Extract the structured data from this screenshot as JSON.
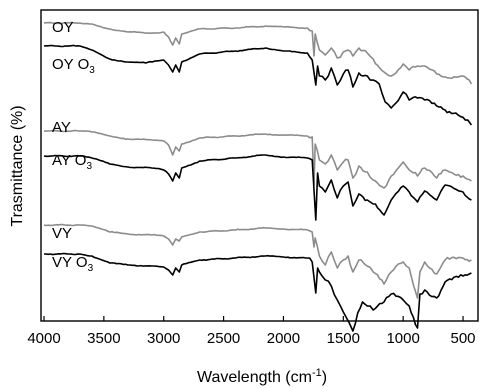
{
  "chart_data": {
    "type": "line",
    "xlabel": "Wavelength (cm",
    "xlabel_sup": "-1",
    "xlabel_close": ")",
    "ylabel": "Trasmittance (%)",
    "xlim": [
      4000,
      400
    ],
    "x_reversed": true,
    "xticks": [
      4000,
      3500,
      3000,
      2500,
      2000,
      1500,
      1000,
      500
    ],
    "grid": false,
    "legend": "none",
    "y_ticks_shown": false,
    "colors": {
      "treated": "#000000",
      "untreated": "#8c8c8c"
    },
    "labels": [
      {
        "text": "OY",
        "sub": ""
      },
      {
        "text": "OY O",
        "sub": "3"
      },
      {
        "text": "AY",
        "sub": ""
      },
      {
        "text": "AY O",
        "sub": "3"
      },
      {
        "text": "VY",
        "sub": ""
      },
      {
        "text": "VY O",
        "sub": "3"
      }
    ],
    "series": [
      {
        "name": "OY",
        "color": "#8c8c8c",
        "points": [
          [
            4000,
            13
          ],
          [
            3700,
            13
          ],
          [
            3600,
            14
          ],
          [
            3450,
            19
          ],
          [
            3300,
            22
          ],
          [
            3100,
            23
          ],
          [
            3000,
            22
          ],
          [
            2960,
            27
          ],
          [
            2925,
            35
          ],
          [
            2900,
            28
          ],
          [
            2870,
            34
          ],
          [
            2850,
            24
          ],
          [
            2700,
            19
          ],
          [
            2400,
            18
          ],
          [
            2150,
            16
          ],
          [
            2000,
            17
          ],
          [
            1800,
            18
          ],
          [
            1760,
            21
          ],
          [
            1745,
            46
          ],
          [
            1735,
            24
          ],
          [
            1700,
            40
          ],
          [
            1650,
            45
          ],
          [
            1600,
            38
          ],
          [
            1550,
            48
          ],
          [
            1500,
            42
          ],
          [
            1460,
            40
          ],
          [
            1420,
            46
          ],
          [
            1370,
            38
          ],
          [
            1300,
            43
          ],
          [
            1250,
            49
          ],
          [
            1160,
            62
          ],
          [
            1100,
            66
          ],
          [
            1000,
            54
          ],
          [
            950,
            60
          ],
          [
            880,
            56
          ],
          [
            820,
            56
          ],
          [
            720,
            64
          ],
          [
            650,
            67
          ],
          [
            500,
            66
          ],
          [
            430,
            74
          ]
        ]
      },
      {
        "name": "OY O3",
        "color": "#000000",
        "points": [
          [
            4000,
            36
          ],
          [
            3700,
            36
          ],
          [
            3600,
            40
          ],
          [
            3450,
            49
          ],
          [
            3300,
            52
          ],
          [
            3150,
            53
          ],
          [
            3000,
            50
          ],
          [
            2960,
            55
          ],
          [
            2925,
            62
          ],
          [
            2900,
            55
          ],
          [
            2870,
            62
          ],
          [
            2850,
            52
          ],
          [
            2700,
            44
          ],
          [
            2400,
            41
          ],
          [
            2150,
            38
          ],
          [
            2000,
            41
          ],
          [
            1800,
            43
          ],
          [
            1760,
            50
          ],
          [
            1730,
            75
          ],
          [
            1715,
            56
          ],
          [
            1700,
            66
          ],
          [
            1650,
            70
          ],
          [
            1600,
            58
          ],
          [
            1550,
            75
          ],
          [
            1500,
            64
          ],
          [
            1460,
            60
          ],
          [
            1420,
            77
          ],
          [
            1370,
            63
          ],
          [
            1300,
            66
          ],
          [
            1250,
            70
          ],
          [
            1200,
            74
          ],
          [
            1150,
            92
          ],
          [
            1100,
            98
          ],
          [
            1000,
            82
          ],
          [
            950,
            90
          ],
          [
            880,
            88
          ],
          [
            820,
            90
          ],
          [
            720,
            96
          ],
          [
            650,
            100
          ],
          [
            560,
            103
          ],
          [
            460,
            110
          ],
          [
            430,
            115
          ]
        ]
      },
      {
        "name": "AY",
        "color": "#8c8c8c",
        "points": [
          [
            4000,
            121
          ],
          [
            3700,
            121
          ],
          [
            3600,
            122
          ],
          [
            3450,
            126
          ],
          [
            3300,
            129
          ],
          [
            3100,
            130
          ],
          [
            3000,
            131
          ],
          [
            2960,
            135
          ],
          [
            2925,
            145
          ],
          [
            2900,
            137
          ],
          [
            2870,
            141
          ],
          [
            2850,
            134
          ],
          [
            2700,
            128
          ],
          [
            2400,
            126
          ],
          [
            2150,
            124
          ],
          [
            2000,
            125
          ],
          [
            1800,
            126
          ],
          [
            1760,
            127
          ],
          [
            1745,
            175
          ],
          [
            1735,
            134
          ],
          [
            1700,
            150
          ],
          [
            1650,
            154
          ],
          [
            1600,
            145
          ],
          [
            1550,
            160
          ],
          [
            1500,
            152
          ],
          [
            1460,
            150
          ],
          [
            1420,
            168
          ],
          [
            1370,
            156
          ],
          [
            1300,
            162
          ],
          [
            1250,
            170
          ],
          [
            1160,
            178
          ],
          [
            1100,
            166
          ],
          [
            1000,
            152
          ],
          [
            950,
            160
          ],
          [
            880,
            166
          ],
          [
            820,
            158
          ],
          [
            720,
            168
          ],
          [
            650,
            160
          ],
          [
            500,
            166
          ],
          [
            430,
            171
          ]
        ]
      },
      {
        "name": "AY O3",
        "color": "#000000",
        "points": [
          [
            4000,
            146
          ],
          [
            3700,
            146
          ],
          [
            3600,
            148
          ],
          [
            3450,
            154
          ],
          [
            3300,
            157
          ],
          [
            3100,
            158
          ],
          [
            3000,
            160
          ],
          [
            2960,
            164
          ],
          [
            2925,
            171
          ],
          [
            2900,
            163
          ],
          [
            2870,
            168
          ],
          [
            2850,
            158
          ],
          [
            2700,
            151
          ],
          [
            2400,
            148
          ],
          [
            2150,
            145
          ],
          [
            2000,
            147
          ],
          [
            1800,
            148
          ],
          [
            1760,
            150
          ],
          [
            1730,
            210
          ],
          [
            1715,
            163
          ],
          [
            1700,
            176
          ],
          [
            1650,
            182
          ],
          [
            1600,
            170
          ],
          [
            1550,
            188
          ],
          [
            1500,
            176
          ],
          [
            1460,
            172
          ],
          [
            1420,
            196
          ],
          [
            1370,
            184
          ],
          [
            1300,
            190
          ],
          [
            1250,
            194
          ],
          [
            1160,
            205
          ],
          [
            1100,
            190
          ],
          [
            1000,
            176
          ],
          [
            950,
            182
          ],
          [
            880,
            192
          ],
          [
            820,
            181
          ],
          [
            720,
            190
          ],
          [
            650,
            175
          ],
          [
            500,
            182
          ],
          [
            430,
            190
          ]
        ]
      },
      {
        "name": "VY",
        "color": "#8c8c8c",
        "points": [
          [
            4000,
            215
          ],
          [
            3700,
            215
          ],
          [
            3600,
            216
          ],
          [
            3450,
            222
          ],
          [
            3300,
            224
          ],
          [
            3100,
            225
          ],
          [
            3000,
            226
          ],
          [
            2960,
            229
          ],
          [
            2925,
            235
          ],
          [
            2900,
            229
          ],
          [
            2870,
            231
          ],
          [
            2850,
            227
          ],
          [
            2700,
            222
          ],
          [
            2400,
            220
          ],
          [
            2150,
            218
          ],
          [
            2000,
            219
          ],
          [
            1800,
            220
          ],
          [
            1760,
            222
          ],
          [
            1745,
            237
          ],
          [
            1735,
            228
          ],
          [
            1700,
            246
          ],
          [
            1650,
            255
          ],
          [
            1600,
            242
          ],
          [
            1550,
            258
          ],
          [
            1500,
            250
          ],
          [
            1460,
            246
          ],
          [
            1420,
            262
          ],
          [
            1370,
            250
          ],
          [
            1300,
            256
          ],
          [
            1250,
            262
          ],
          [
            1160,
            274
          ],
          [
            1100,
            262
          ],
          [
            1000,
            252
          ],
          [
            950,
            258
          ],
          [
            880,
            288
          ],
          [
            860,
            262
          ],
          [
            820,
            252
          ],
          [
            720,
            264
          ],
          [
            650,
            250
          ],
          [
            500,
            248
          ],
          [
            430,
            250
          ]
        ]
      },
      {
        "name": "VY O3",
        "color": "#000000",
        "points": [
          [
            4000,
            244
          ],
          [
            3700,
            244
          ],
          [
            3600,
            246
          ],
          [
            3450,
            253
          ],
          [
            3300,
            255
          ],
          [
            3100,
            256
          ],
          [
            3000,
            257
          ],
          [
            2960,
            260
          ],
          [
            2925,
            265
          ],
          [
            2900,
            258
          ],
          [
            2870,
            262
          ],
          [
            2850,
            255
          ],
          [
            2700,
            250
          ],
          [
            2400,
            248
          ],
          [
            2150,
            246
          ],
          [
            2000,
            247
          ],
          [
            1800,
            248
          ],
          [
            1760,
            252
          ],
          [
            1730,
            283
          ],
          [
            1715,
            258
          ],
          [
            1700,
            262
          ],
          [
            1650,
            270
          ],
          [
            1600,
            276
          ],
          [
            1550,
            290
          ],
          [
            1500,
            302
          ],
          [
            1450,
            313
          ],
          [
            1420,
            321
          ],
          [
            1380,
            303
          ],
          [
            1340,
            292
          ],
          [
            1300,
            296
          ],
          [
            1250,
            300
          ],
          [
            1160,
            292
          ],
          [
            1100,
            284
          ],
          [
            1000,
            290
          ],
          [
            950,
            296
          ],
          [
            880,
            318
          ],
          [
            860,
            284
          ],
          [
            820,
            280
          ],
          [
            720,
            288
          ],
          [
            650,
            272
          ],
          [
            500,
            266
          ],
          [
            430,
            263
          ]
        ]
      }
    ]
  }
}
